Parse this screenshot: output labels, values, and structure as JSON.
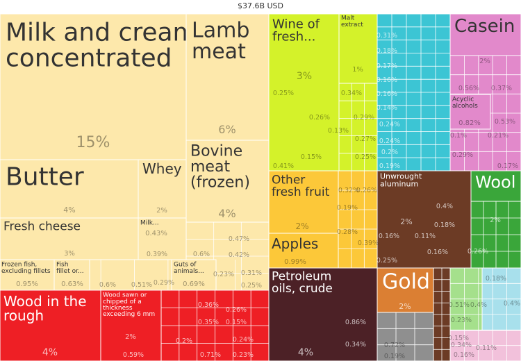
{
  "header": {
    "total": "$37.6B USD"
  },
  "colors": {
    "animal": "#fde8ab",
    "vegetable": "#d4f22a",
    "fruit": "#fcc839",
    "wood": "#ee1f25",
    "mineral": "#4c2126",
    "metal": "#6c3b25",
    "gold": "#db7f33",
    "chemical": "#e289cb",
    "textile": "#3aa63a",
    "cyan": "#3cc5d4",
    "gray": "#8f8f8f",
    "lightgreen": "#a5e08c",
    "lightblue": "#a8e0ec",
    "pink": "#f2c1db"
  },
  "chart_data": {
    "type": "treemap",
    "title": "$37.6B USD",
    "tiles": [
      {
        "label": "Milk and cream, concentrated",
        "display": "Milk and cream,\nconcentrated",
        "value": 15,
        "pct": "15%",
        "group": "animal"
      },
      {
        "label": "Lamb meat",
        "display": "Lamb\nmeat",
        "value": 6,
        "pct": "6%",
        "group": "animal"
      },
      {
        "label": "Butter",
        "display": "Butter",
        "value": 4,
        "pct": "4%",
        "group": "animal"
      },
      {
        "label": "Whey",
        "display": "Whey",
        "value": 2,
        "pct": "2%",
        "group": "animal"
      },
      {
        "label": "Bovine meat (frozen)",
        "display": "Bovine\nmeat\n(frozen)",
        "value": 4,
        "pct": "4%",
        "group": "animal"
      },
      {
        "label": "Fresh cheese",
        "display": "Fresh cheese",
        "value": 3,
        "pct": "3%",
        "group": "animal"
      },
      {
        "label": "Milk...",
        "display": "Milk...",
        "value": 0.43,
        "pct": "0.43%",
        "group": "animal"
      },
      {
        "label": "Frozen fish, excluding fillets",
        "display": "Frozen fish,\nexcluding fillets",
        "value": 0.95,
        "pct": "0.95%",
        "group": "animal"
      },
      {
        "label": "Fish fillet or...",
        "display": "Fish\nfillet or...",
        "value": 0.63,
        "pct": "0.63%",
        "group": "animal"
      },
      {
        "label": "Guts of animals...",
        "display": "Guts of\nanimals...",
        "value": 0.69,
        "pct": "0.69%",
        "group": "animal"
      },
      {
        "label": "Wood in the rough",
        "display": "Wood in the\nrough",
        "value": 4,
        "pct": "4%",
        "group": "wood"
      },
      {
        "label": "Wood sawn or chipped of a thickness exceeding 6 mm",
        "display": "Wood sawn or\nchipped of a\nthickness\nexceeding 6 mm",
        "value": 2,
        "pct": "2%",
        "group": "wood"
      },
      {
        "label": "Wine of fresh...",
        "display": "Wine of\nfresh...",
        "value": 3,
        "pct": "3%",
        "group": "vegetable"
      },
      {
        "label": "Malt extract",
        "display": "Malt\nextract",
        "value": 1,
        "pct": "1%",
        "group": "vegetable"
      },
      {
        "label": "Other fresh fruit",
        "display": "Other\nfresh fruit",
        "value": 2,
        "pct": "2%",
        "group": "fruit"
      },
      {
        "label": "Apples",
        "display": "Apples",
        "value": 0.99,
        "pct": "0.99%",
        "group": "fruit"
      },
      {
        "label": "Petroleum oils, crude",
        "display": "Petroleum\noils, crude",
        "value": 4,
        "pct": "4%",
        "group": "mineral"
      },
      {
        "label": "Unwrought aluminum",
        "display": "Unwrought\naluminum",
        "value": 2,
        "pct": "2%",
        "group": "metal"
      },
      {
        "label": "Gold",
        "display": "Gold",
        "value": 2,
        "pct": "2%",
        "group": "gold"
      },
      {
        "label": "Casein",
        "display": "Casein",
        "value": 2,
        "pct": "2%",
        "group": "chemical"
      },
      {
        "label": "Acyclic alcohols",
        "display": "Acyclic\nalcohols",
        "value": 0.82,
        "pct": "0.82%",
        "group": "chemical"
      },
      {
        "label": "Wool",
        "display": "Wool",
        "value": 2,
        "pct": "2%",
        "group": "textile"
      }
    ],
    "small_percent_labels": [
      "0.6%",
      "0.51%",
      "0.29%",
      "0.39%",
      "0.6%",
      "0.47%",
      "0.42%",
      "0.23%",
      "0.31%",
      "0.25%",
      "0.36%",
      "0.26%",
      "0.35%",
      "0.15%",
      "0.24%",
      "0.59%",
      "0.2%",
      "0.71%",
      "0.23%",
      "0.25%",
      "0.34%",
      "0.26%",
      "0.29%",
      "0.13%",
      "0.27%",
      "0.15%",
      "0.25%",
      "0.41%",
      "0.32%",
      "0.26%",
      "0.19%",
      "0.28%",
      "0.39%",
      "0.86%",
      "0.34%",
      "0.31%",
      "0.18%",
      "0.17%",
      "0.16%",
      "0.16%",
      "0.14%",
      "0.24%",
      "0.24%",
      "0.2%",
      "0.19%",
      "0.4%",
      "0.18%",
      "0.16%",
      "0.11%",
      "0.16%",
      "0.25%",
      "0.72%",
      "0.19%",
      "0.56%",
      "0.37%",
      "0.53%",
      "0.1%",
      "0.21%",
      "0.29%",
      "0.17%",
      "0.26%",
      "0.51%",
      "0.4%",
      "0.4%",
      "0.18%",
      "0.23%",
      "0.34%",
      "0.15%",
      "0.11%",
      "0.16%"
    ]
  }
}
